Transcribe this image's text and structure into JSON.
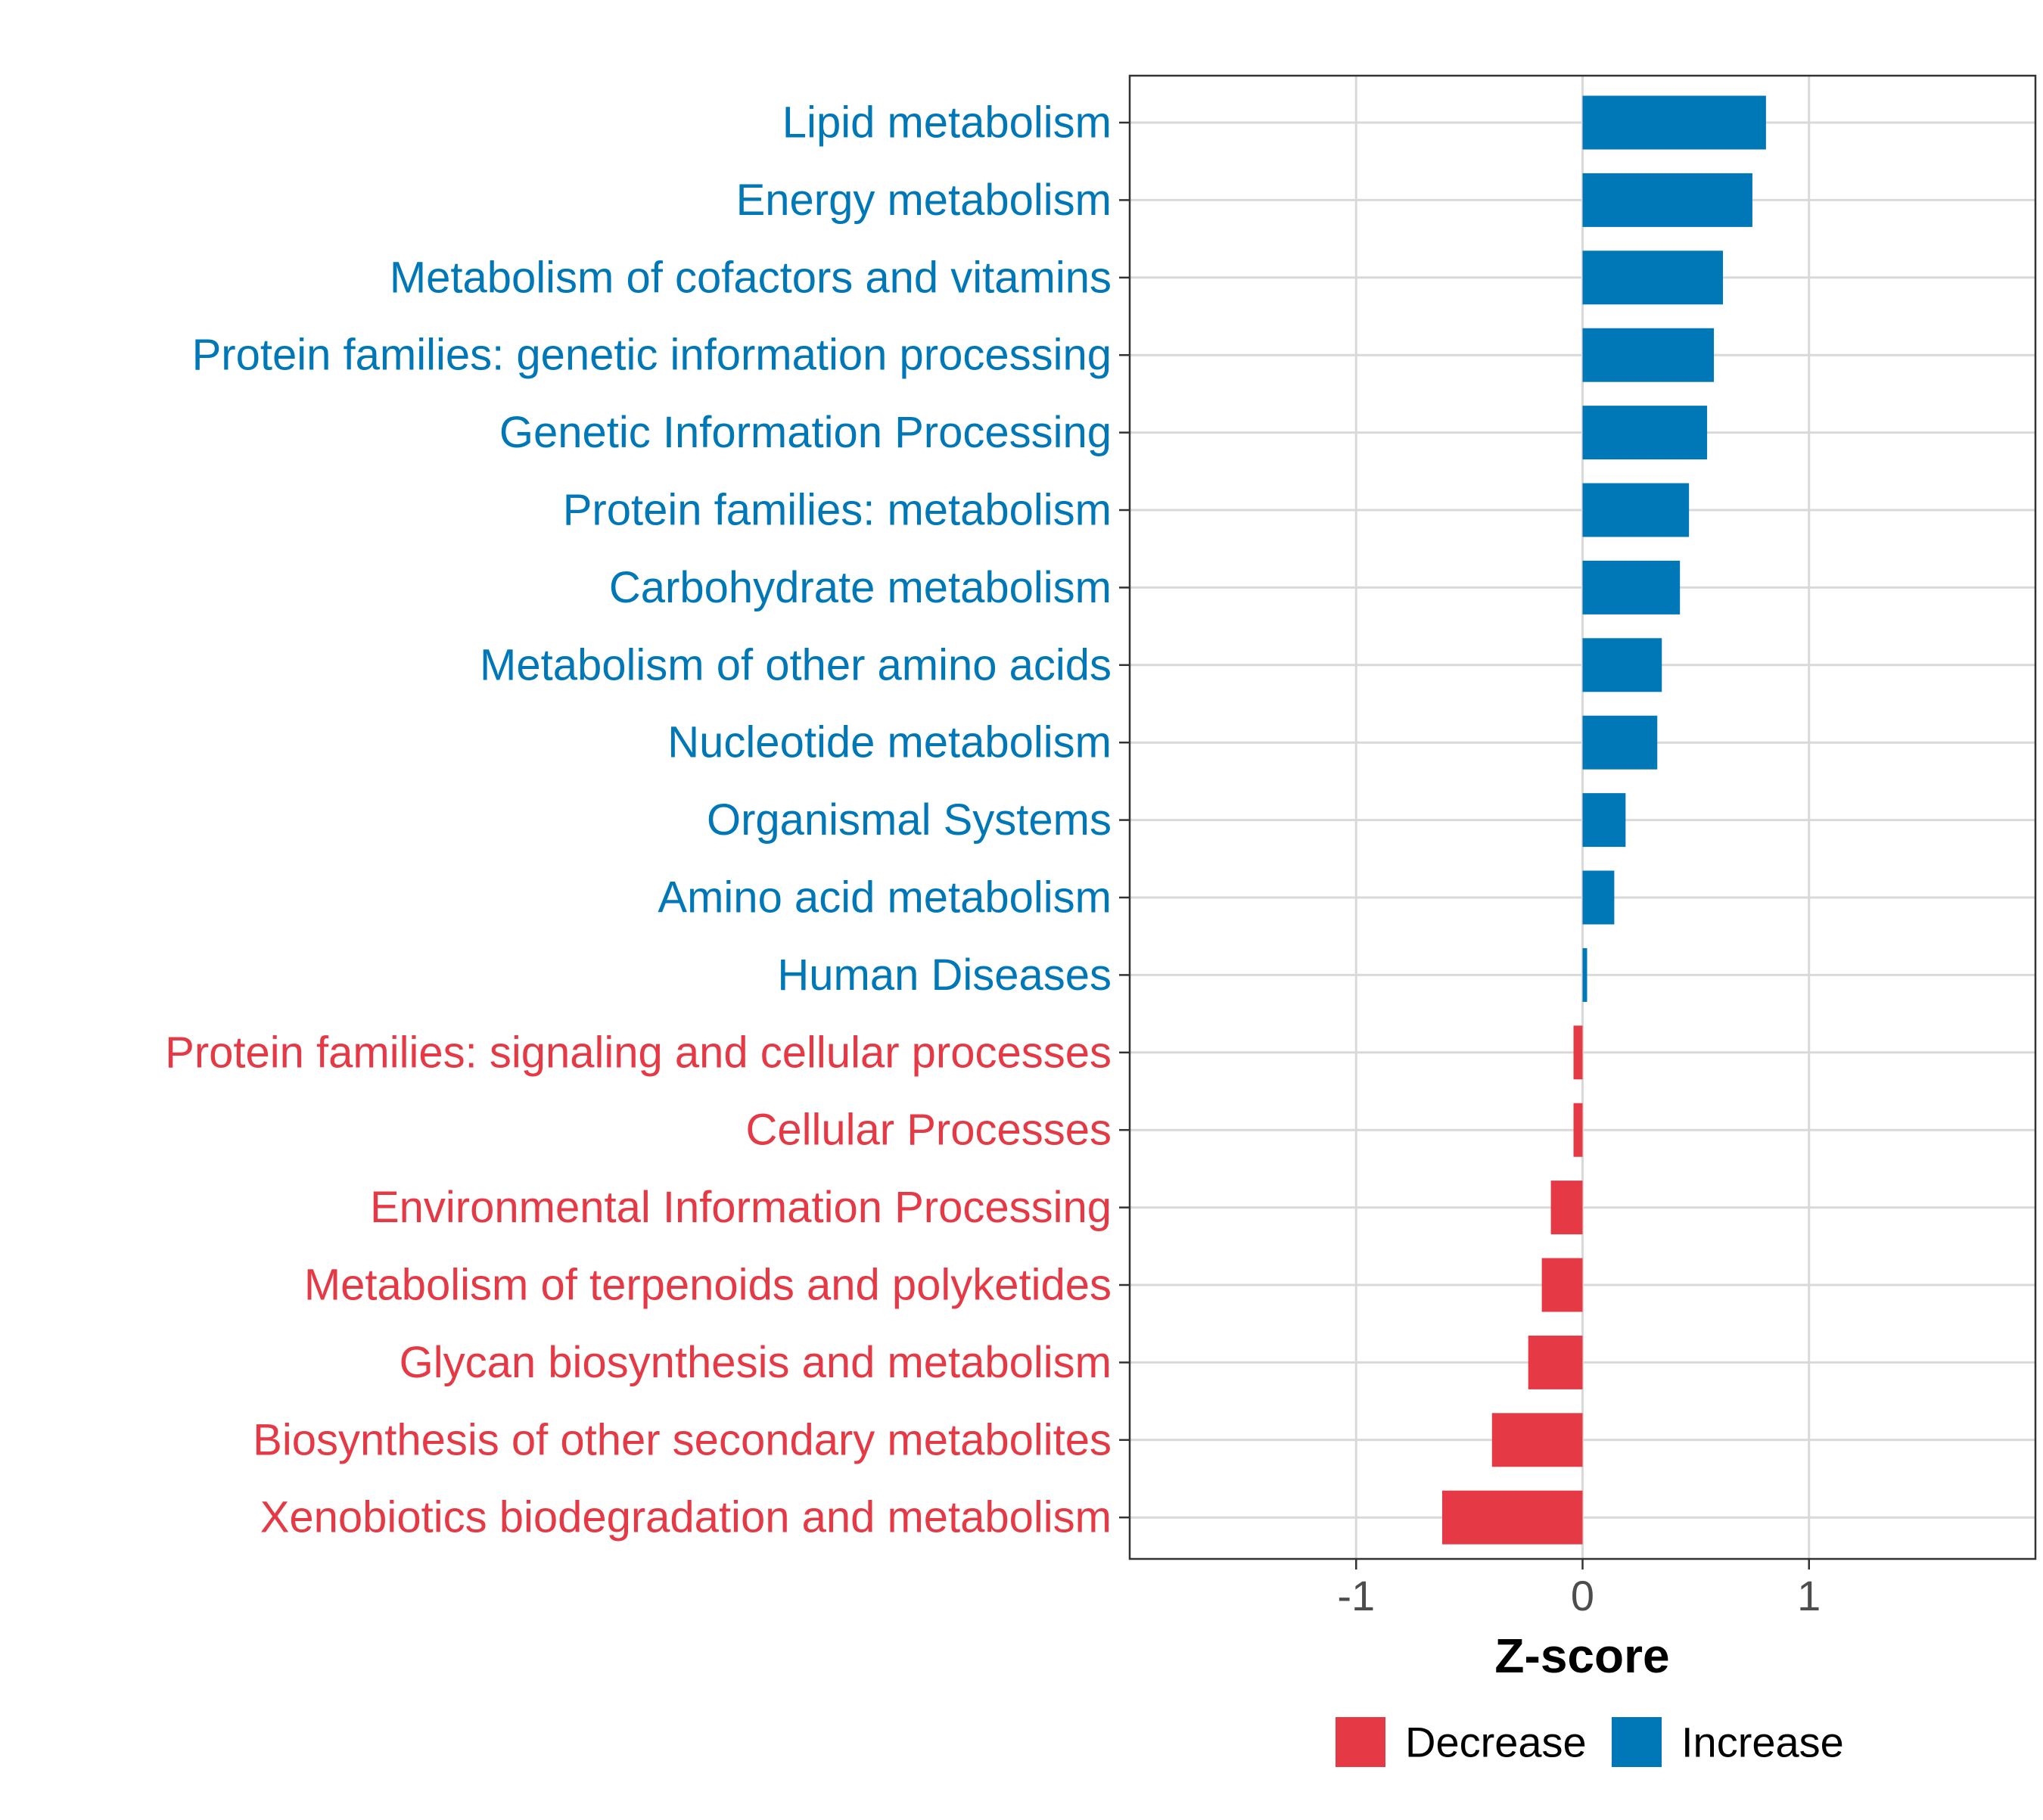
{
  "chart_data": {
    "type": "bar",
    "orientation": "horizontal",
    "title": "",
    "xlabel": "Z-score",
    "ylabel": "",
    "xlim": [
      -2,
      2
    ],
    "xticks": [
      -1,
      0,
      1
    ],
    "xtick_labels": [
      "-1",
      "0",
      "1"
    ],
    "grid": true,
    "colors": {
      "Decrease": "#E63946",
      "Increase": "#0077B6"
    },
    "categories": [
      "Lipid metabolism",
      "Energy metabolism",
      "Metabolism of cofactors and vitamins",
      "Protein families: genetic information processing",
      "Genetic Information Processing",
      "Protein families: metabolism",
      "Carbohydrate metabolism",
      "Metabolism of other amino acids",
      "Nucleotide metabolism",
      "Organismal Systems",
      "Amino acid metabolism",
      "Human Diseases",
      "Protein families: signaling and cellular processes",
      "Cellular Processes",
      "Environmental Information Processing",
      "Metabolism of terpenoids and polyketides",
      "Glycan biosynthesis and metabolism",
      "Biosynthesis of other secondary metabolites",
      "Xenobiotics biodegradation and metabolism"
    ],
    "values": [
      0.81,
      0.75,
      0.62,
      0.58,
      0.55,
      0.47,
      0.43,
      0.35,
      0.33,
      0.19,
      0.14,
      0.02,
      -0.04,
      -0.04,
      -0.14,
      -0.18,
      -0.24,
      -0.4,
      -0.62
    ],
    "groups": [
      "Increase",
      "Increase",
      "Increase",
      "Increase",
      "Increase",
      "Increase",
      "Increase",
      "Increase",
      "Increase",
      "Increase",
      "Increase",
      "Increase",
      "Decrease",
      "Decrease",
      "Decrease",
      "Decrease",
      "Decrease",
      "Decrease",
      "Decrease"
    ],
    "legend": {
      "position": "bottom",
      "entries": [
        {
          "label": "Decrease",
          "color": "#E63946"
        },
        {
          "label": "Increase",
          "color": "#0077B6"
        }
      ]
    }
  }
}
